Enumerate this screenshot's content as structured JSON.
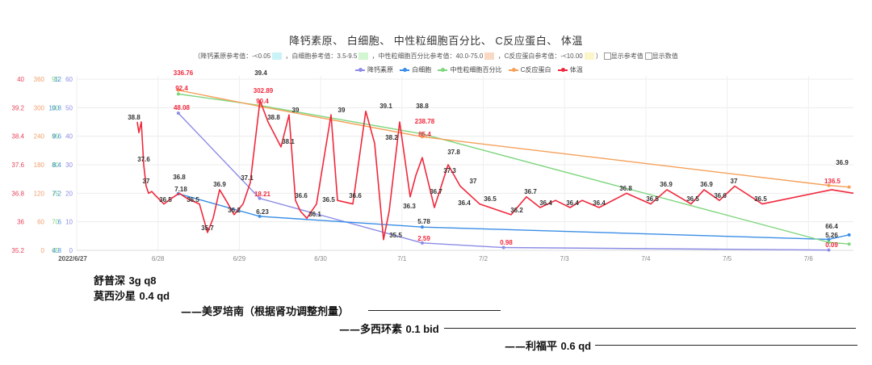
{
  "title": "降钙素原、 白细胞、 中性粒细胞百分比、 C反应蛋白、 体温",
  "reference_bar": {
    "prefix": "（",
    "items": [
      {
        "label": "降钙素原参考值：-<0.05",
        "swatch": "#c9f3f7"
      },
      {
        "label": "，白细胞参考值：3.5-9.5",
        "swatch": "#d2f5d2"
      },
      {
        "label": "，中性粒细胞百分比参考值：40.0-75.0",
        "swatch": "#f9d9c4"
      },
      {
        "label": "，C反应蛋白参考值：-<10.00",
        "swatch": "#fbf5c8"
      }
    ],
    "suffix": "）",
    "checkboxes": [
      {
        "label": "显示参考值",
        "checked": false
      },
      {
        "label": "显示数值",
        "checked": false
      }
    ]
  },
  "legend": [
    {
      "label": "降钙素原",
      "color": "#8c8ce6"
    },
    {
      "label": "白细胞",
      "color": "#3a8ee6"
    },
    {
      "label": "中性粒细胞百分比",
      "color": "#7ed67e"
    },
    {
      "label": "C反应蛋白",
      "color": "#f5a05a"
    },
    {
      "label": "体温",
      "color": "#f0283c"
    }
  ],
  "chart_data": {
    "type": "line",
    "title": "降钙素原、 白细胞、 中性粒细胞百分比、 C反应蛋白、 体温",
    "xlabel": "",
    "x_ticks": [
      "2022/6/27",
      "6/28",
      "6/29",
      "6/30",
      "7/1",
      "7/2",
      "7/3",
      "7/4",
      "7/5",
      "7/6"
    ],
    "y_axes": [
      {
        "name": "体温",
        "color": "#e8435a",
        "ticks": [
          35.2,
          36,
          36.8,
          37.6,
          38.4,
          39.2,
          40
        ],
        "range": [
          35.2,
          40
        ]
      },
      {
        "name": "C反应蛋白",
        "color": "#f0a070",
        "ticks": [
          0,
          60,
          120,
          180,
          240,
          300,
          360
        ],
        "range": [
          0,
          360
        ]
      },
      {
        "name": "中性粒细胞百分比",
        "color": "#7fd07f",
        "ticks": [
          65,
          70,
          75,
          80,
          85,
          90,
          95
        ],
        "range": [
          65,
          95
        ]
      },
      {
        "name": "白细胞",
        "color": "#4a90e2",
        "ticks": [
          4.8,
          6,
          7.2,
          8.4,
          9.6,
          10.8,
          12
        ],
        "range": [
          4.8,
          12
        ]
      },
      {
        "name": "降钙素原",
        "color": "#8c8ce6",
        "ticks": [
          0,
          10,
          20,
          30,
          40,
          50,
          60
        ],
        "range": [
          0,
          60
        ]
      }
    ],
    "grid": true,
    "legend_position": "top",
    "series": [
      {
        "name": "降钙素原",
        "color": "#8c8ce6",
        "points": [
          {
            "x": "6/28 06:00",
            "y": 48.08
          },
          {
            "x": "6/29 06:00",
            "y": 18.21
          },
          {
            "x": "7/1 06:00",
            "y": 2.59
          },
          {
            "x": "7/2 06:00",
            "y": 0.98
          },
          {
            "x": "7/6 06:00",
            "y": 0.09
          }
        ]
      },
      {
        "name": "白细胞",
        "color": "#3a8ee6",
        "points": [
          {
            "x": "6/28 06:00",
            "y": 7.18
          },
          {
            "x": "6/29 06:00",
            "y": 6.23
          },
          {
            "x": "7/1 06:00",
            "y": 5.78
          },
          {
            "x": "7/6 06:00",
            "y": 5.26
          },
          {
            "x": "7/6 12:00",
            "y": 5.45
          }
        ]
      },
      {
        "name": "中性粒细胞百分比",
        "color": "#7ed67e",
        "points": [
          {
            "x": "6/28 06:00",
            "y": 92.4
          },
          {
            "x": "6/29 06:00",
            "y": 90.4
          },
          {
            "x": "7/1 06:00",
            "y": 85.4
          },
          {
            "x": "7/6 06:00",
            "y": 66.4
          },
          {
            "x": "7/6 12:00",
            "y": 66.1
          }
        ]
      },
      {
        "name": "C反应蛋白",
        "color": "#f5a05a",
        "points": [
          {
            "x": "6/28 06:00",
            "y": 336.76
          },
          {
            "x": "6/29 06:00",
            "y": 302.89
          },
          {
            "x": "7/1 06:00",
            "y": 238.78
          },
          {
            "x": "7/6 06:00",
            "y": 136.5
          },
          {
            "x": "7/6 12:00",
            "y": 133
          }
        ]
      },
      {
        "name": "体温",
        "color": "#f0283c",
        "labels": [
          "38.8",
          "37.6",
          "37",
          "36.5",
          "36.8",
          "36.5",
          "35.7",
          "36.9",
          "36.2",
          "37.1",
          "39.4",
          "38.8",
          "38.1",
          "39",
          "36.6",
          "36.1",
          "36.5",
          "39",
          "36.6",
          "39.1",
          "38.2",
          "35.5",
          "36.3",
          "38.8",
          "36.7",
          "37.3",
          "37.8",
          "36.4",
          "37",
          "36.5",
          "36.2",
          "36.7",
          "36.4",
          "36.4",
          "36.4",
          "36.8",
          "36.5",
          "36.9",
          "36.5",
          "36.9",
          "36.6",
          "37",
          "36.5",
          "36.9"
        ],
        "values": [
          38.8,
          38.5,
          38.8,
          37.6,
          37,
          36.8,
          36.85,
          36.75,
          36.5,
          36.65,
          36.8,
          36.65,
          36.5,
          35.7,
          36.3,
          36.9,
          36.6,
          36.2,
          36.5,
          37.1,
          39.4,
          38.8,
          38.1,
          39,
          36.6,
          36.1,
          36.5,
          39,
          36.6,
          36.5,
          39.1,
          38.2,
          35.5,
          36.3,
          38.8,
          36.7,
          37.3,
          37.8,
          36.4,
          37.6,
          37,
          36.5,
          36.2,
          36.7,
          36.4,
          36.6,
          36.4,
          36.6,
          36.4,
          36.8,
          36.5,
          36.9,
          36.5,
          36.9,
          36.6,
          37,
          36.5,
          36.9,
          36.8
        ]
      }
    ],
    "point_labels_red": [
      "336.76",
      "92.4",
      "48.08",
      "302.89",
      "90.4",
      "18.21",
      "238.78",
      "85.4",
      "2.59",
      "0.98",
      "136.5",
      "0.09"
    ],
    "point_labels_dark": [
      "39.4",
      "7.18",
      "6.23",
      "5.78",
      "66.4",
      "5.26"
    ]
  },
  "annotations": {
    "med1": {
      "name": "舒普深",
      "dose": "3g q8"
    },
    "med2": {
      "name": "莫西沙星",
      "dose": "0.4 qd"
    },
    "med3": {
      "lead": "——",
      "name": "美罗培南（根据肾功调整剂量）"
    },
    "med4": {
      "lead": "——",
      "name": "多西环素",
      "dose": "0.1 bid"
    },
    "med5": {
      "lead": "——",
      "name": "利福平",
      "dose": "0.6 qd"
    }
  }
}
